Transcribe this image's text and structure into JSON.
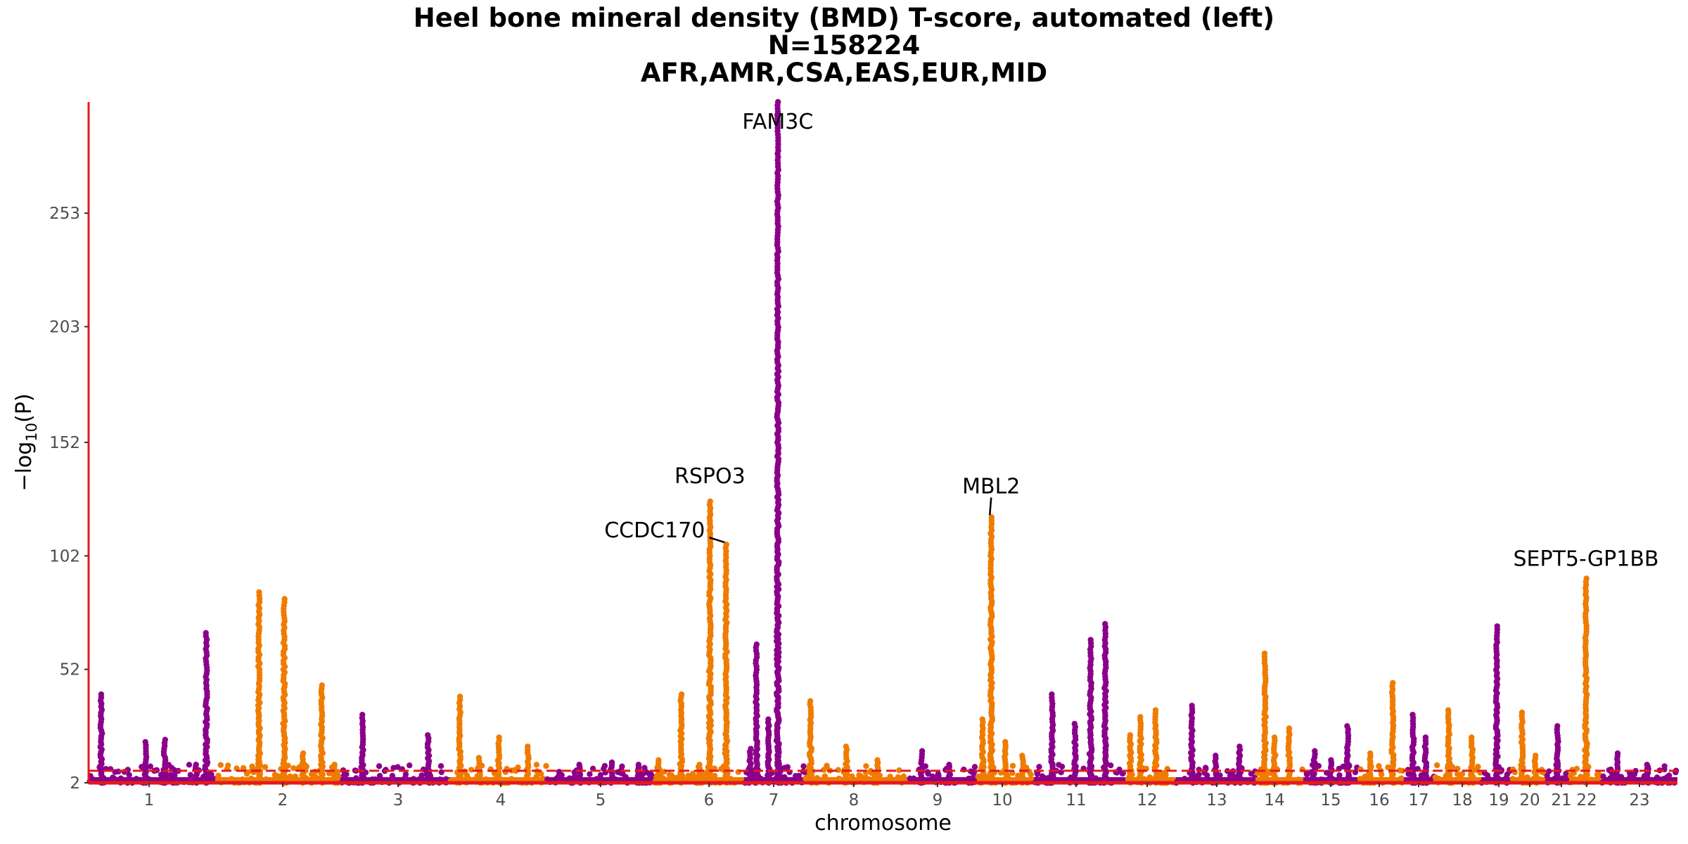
{
  "chart_data": {
    "type": "scatter",
    "subtype": "manhattan",
    "title": "Heel bone mineral density (BMD) T-score, automated (left)",
    "subtitle_lines": [
      "N=158224",
      "AFR,AMR,CSA,EAS,EUR,MID"
    ],
    "xlabel": "chromosome",
    "ylabel": "−log10(P)",
    "y_ticks": [
      2,
      52,
      102,
      152,
      203,
      253
    ],
    "ylim": [
      2,
      302
    ],
    "threshold_line": {
      "y": 7.3,
      "color": "#e41a1c",
      "style": "dashed"
    },
    "axis_color": "#e41a1c",
    "grid": false,
    "colors": {
      "odd": "#8b008b",
      "even": "#ef7c00"
    },
    "chromosomes": [
      {
        "label": "1",
        "x": 1
      },
      {
        "label": "2",
        "x": 2
      },
      {
        "label": "3",
        "x": 3
      },
      {
        "label": "4",
        "x": 4
      },
      {
        "label": "5",
        "x": 5
      },
      {
        "label": "6",
        "x": 6
      },
      {
        "label": "7",
        "x": 7
      },
      {
        "label": "8",
        "x": 8
      },
      {
        "label": "9",
        "x": 9
      },
      {
        "label": "10",
        "x": 10
      },
      {
        "label": "11",
        "x": 11
      },
      {
        "label": "12",
        "x": 12
      },
      {
        "label": "13",
        "x": 13
      },
      {
        "label": "14",
        "x": 14
      },
      {
        "label": "15",
        "x": 15
      },
      {
        "label": "16",
        "x": 16
      },
      {
        "label": "17",
        "x": 17
      },
      {
        "label": "18",
        "x": 18
      },
      {
        "label": "19",
        "x": 19
      },
      {
        "label": "20",
        "x": 20
      },
      {
        "label": "21",
        "x": 21
      },
      {
        "label": "22",
        "x": 22
      },
      {
        "label": "23",
        "x": 23
      }
    ],
    "peaks": [
      {
        "chr": 1,
        "pos": 0.1,
        "max": 41
      },
      {
        "chr": 1,
        "pos": 0.45,
        "max": 20
      },
      {
        "chr": 1,
        "pos": 0.6,
        "max": 21
      },
      {
        "chr": 1,
        "pos": 0.85,
        "max": 10
      },
      {
        "chr": 1,
        "pos": 0.93,
        "max": 68
      },
      {
        "chr": 2,
        "pos": 0.35,
        "max": 86
      },
      {
        "chr": 2,
        "pos": 0.55,
        "max": 83
      },
      {
        "chr": 2,
        "pos": 0.7,
        "max": 15
      },
      {
        "chr": 2,
        "pos": 0.85,
        "max": 45
      },
      {
        "chr": 2,
        "pos": 0.95,
        "max": 10
      },
      {
        "chr": 3,
        "pos": 0.2,
        "max": 32
      },
      {
        "chr": 3,
        "pos": 0.8,
        "max": 23
      },
      {
        "chr": 4,
        "pos": 0.1,
        "max": 40
      },
      {
        "chr": 4,
        "pos": 0.3,
        "max": 13
      },
      {
        "chr": 4,
        "pos": 0.5,
        "max": 22
      },
      {
        "chr": 4,
        "pos": 0.8,
        "max": 18
      },
      {
        "chr": 5,
        "pos": 0.3,
        "max": 10
      },
      {
        "chr": 5,
        "pos": 0.6,
        "max": 11
      },
      {
        "chr": 5,
        "pos": 0.85,
        "max": 10
      },
      {
        "chr": 6,
        "pos": 0.05,
        "max": 12
      },
      {
        "chr": 6,
        "pos": 0.3,
        "max": 41
      },
      {
        "chr": 6,
        "pos": 0.5,
        "max": 10
      },
      {
        "chr": 6,
        "pos": 0.62,
        "max": 126
      },
      {
        "chr": 6,
        "pos": 0.8,
        "max": 107
      },
      {
        "chr": 7,
        "pos": 0.1,
        "max": 17
      },
      {
        "chr": 7,
        "pos": 0.2,
        "max": 63
      },
      {
        "chr": 7,
        "pos": 0.4,
        "max": 30
      },
      {
        "chr": 7,
        "pos": 0.55,
        "max": 302
      },
      {
        "chr": 8,
        "pos": 0.05,
        "max": 38
      },
      {
        "chr": 8,
        "pos": 0.4,
        "max": 18
      },
      {
        "chr": 8,
        "pos": 0.7,
        "max": 12
      },
      {
        "chr": 9,
        "pos": 0.2,
        "max": 16
      },
      {
        "chr": 9,
        "pos": 0.6,
        "max": 10
      },
      {
        "chr": 10,
        "pos": 0.1,
        "max": 30
      },
      {
        "chr": 10,
        "pos": 0.25,
        "max": 119
      },
      {
        "chr": 10,
        "pos": 0.5,
        "max": 20
      },
      {
        "chr": 10,
        "pos": 0.8,
        "max": 14
      },
      {
        "chr": 11,
        "pos": 0.2,
        "max": 41
      },
      {
        "chr": 11,
        "pos": 0.45,
        "max": 28
      },
      {
        "chr": 11,
        "pos": 0.62,
        "max": 65
      },
      {
        "chr": 11,
        "pos": 0.78,
        "max": 72
      },
      {
        "chr": 12,
        "pos": 0.1,
        "max": 23
      },
      {
        "chr": 12,
        "pos": 0.3,
        "max": 31
      },
      {
        "chr": 12,
        "pos": 0.6,
        "max": 34
      },
      {
        "chr": 13,
        "pos": 0.2,
        "max": 36
      },
      {
        "chr": 13,
        "pos": 0.5,
        "max": 14
      },
      {
        "chr": 13,
        "pos": 0.8,
        "max": 18
      },
      {
        "chr": 14,
        "pos": 0.2,
        "max": 59
      },
      {
        "chr": 14,
        "pos": 0.4,
        "max": 22
      },
      {
        "chr": 14,
        "pos": 0.7,
        "max": 26
      },
      {
        "chr": 15,
        "pos": 0.2,
        "max": 16
      },
      {
        "chr": 15,
        "pos": 0.5,
        "max": 12
      },
      {
        "chr": 15,
        "pos": 0.8,
        "max": 27
      },
      {
        "chr": 16,
        "pos": 0.25,
        "max": 15
      },
      {
        "chr": 16,
        "pos": 0.75,
        "max": 46
      },
      {
        "chr": 17,
        "pos": 0.3,
        "max": 32
      },
      {
        "chr": 17,
        "pos": 0.7,
        "max": 22
      },
      {
        "chr": 18,
        "pos": 0.3,
        "max": 34
      },
      {
        "chr": 18,
        "pos": 0.8,
        "max": 22
      },
      {
        "chr": 19,
        "pos": 0.5,
        "max": 71
      },
      {
        "chr": 20,
        "pos": 0.3,
        "max": 33
      },
      {
        "chr": 20,
        "pos": 0.7,
        "max": 14
      },
      {
        "chr": 21,
        "pos": 0.5,
        "max": 27
      },
      {
        "chr": 22,
        "pos": 0.5,
        "max": 92
      },
      {
        "chr": 23,
        "pos": 0.2,
        "max": 15
      },
      {
        "chr": 23,
        "pos": 0.6,
        "max": 10
      }
    ],
    "annotations": [
      {
        "label": "FAM3C",
        "x": 7.55,
        "y": 302
      },
      {
        "label": "RSPO3",
        "x": 6.62,
        "y": 126
      },
      {
        "label": "CCDC170",
        "x": 6.8,
        "y": 107
      },
      {
        "label": "MBL2",
        "x": 10.25,
        "y": 119
      },
      {
        "label": "SEPT5-GP1BB",
        "x": 22.5,
        "y": 92
      }
    ]
  }
}
